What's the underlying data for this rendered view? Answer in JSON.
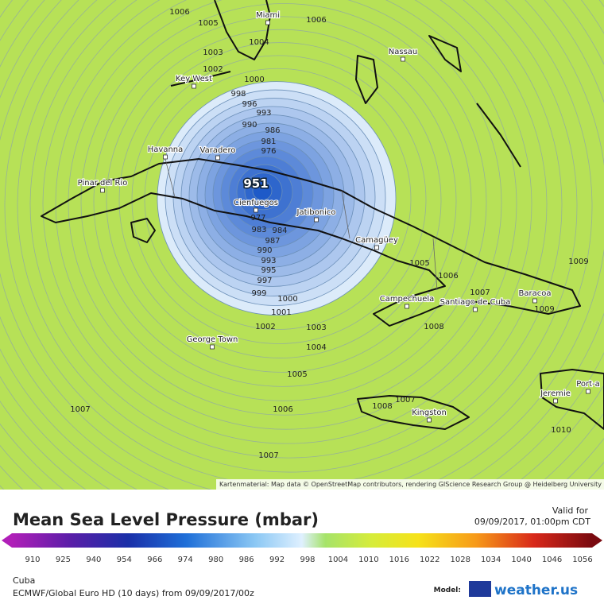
{
  "map": {
    "cities": [
      "Miami",
      "Nassau",
      "Key West",
      "Havanna",
      "Varadero",
      "Pinar del Rio",
      "Cienfuegos",
      "Jatibonico",
      "Camagüey",
      "Campechuela",
      "Santiago de Cuba",
      "Baracoa",
      "George Town",
      "Kingston",
      "Jeremie",
      "Port-a"
    ],
    "low_center": "951",
    "isobar_labels": [
      "1006",
      "1005",
      "1006",
      "1004",
      "1003",
      "1002",
      "1000",
      "998",
      "996",
      "993",
      "990",
      "986",
      "981",
      "976",
      "977",
      "983",
      "984",
      "987",
      "990",
      "993",
      "995",
      "997",
      "999",
      "1000",
      "1001",
      "1002",
      "1003",
      "1004",
      "1005",
      "1006",
      "1007",
      "1007",
      "1005",
      "1006",
      "1007",
      "1008",
      "1009",
      "1009",
      "1007",
      "1008",
      "1010"
    ],
    "attribution": "Kartenmaterial: Map data © OpenStreetMap contributors, rendering GIScience Research Group @ Heidelberg University"
  },
  "footer": {
    "title": "Mean Sea Level Pressure (mbar)",
    "valid_label": "Valid for",
    "valid_time": "09/09/2017, 01:00pm CDT",
    "legend_ticks": [
      "910",
      "925",
      "940",
      "954",
      "966",
      "974",
      "980",
      "986",
      "992",
      "998",
      "1004",
      "1010",
      "1016",
      "1022",
      "1028",
      "1034",
      "1040",
      "1046",
      "1056"
    ],
    "region": "Cuba",
    "model_run": "ECMWF/Global Euro HD (10 days) from 09/09/2017/00z",
    "model_label": "Model:",
    "brand": "weather.us"
  }
}
